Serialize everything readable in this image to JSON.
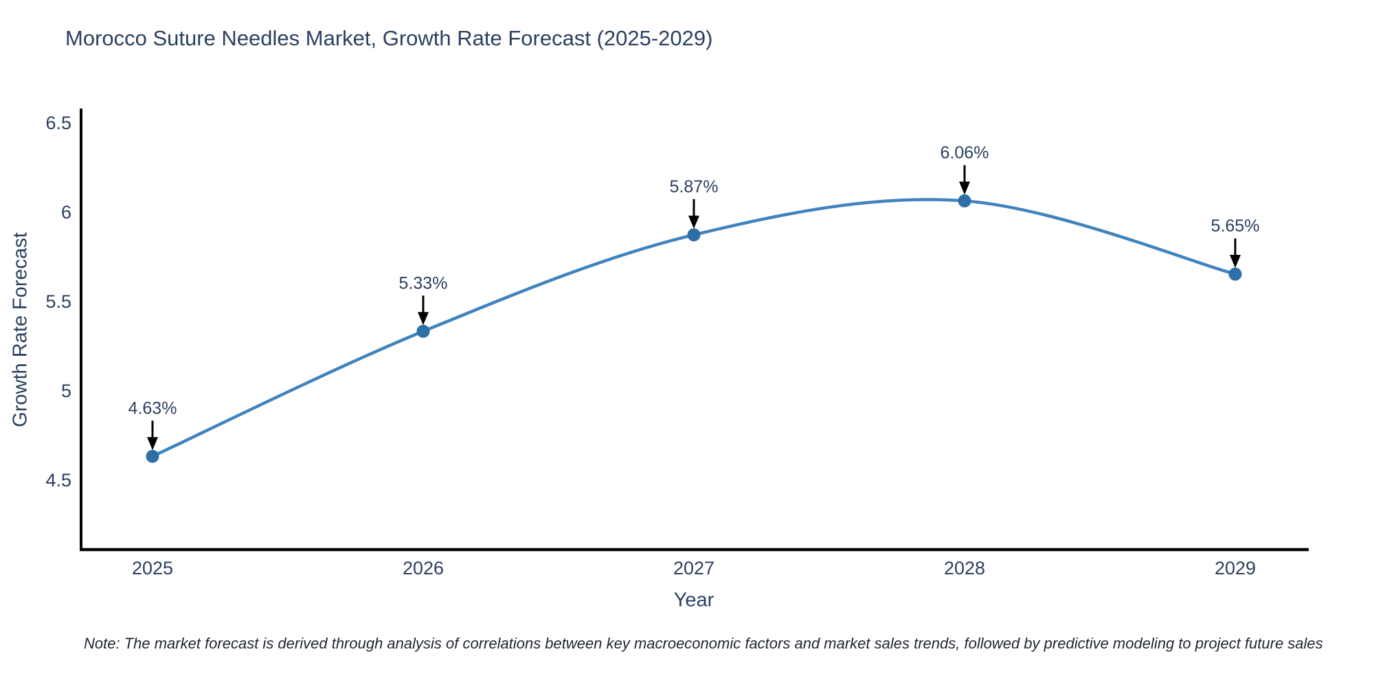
{
  "note": "Note: The market forecast is derived through analysis of correlations between key macroeconomic factors and market sales trends, followed by predictive modeling to project future sales",
  "chart_data": {
    "type": "line",
    "title": "Morocco Suture Needles Market, Growth Rate Forecast (2025-2029)",
    "xlabel": "Year",
    "ylabel": "Growth Rate Forecast",
    "categories": [
      "2025",
      "2026",
      "2027",
      "2028",
      "2029"
    ],
    "values": [
      4.63,
      5.33,
      5.87,
      6.06,
      5.65
    ],
    "point_labels": [
      "4.63%",
      "5.33%",
      "5.87%",
      "6.06%",
      "5.65%"
    ],
    "ytick_labels": [
      "4.5",
      "5",
      "5.5",
      "6",
      "6.5"
    ],
    "ytick_values": [
      4.5,
      5.0,
      5.5,
      6.0,
      6.5
    ],
    "ylim": [
      4.108,
      6.577
    ],
    "grid": false,
    "legend": "none",
    "line_smooth": true,
    "line_color": "#4183be",
    "marker_color": "#2e6fa8",
    "axis_color": "#000000",
    "font_color": "#2a3f5f",
    "annotation_color": "#2a3f5f",
    "arrow_color": "#000000"
  }
}
